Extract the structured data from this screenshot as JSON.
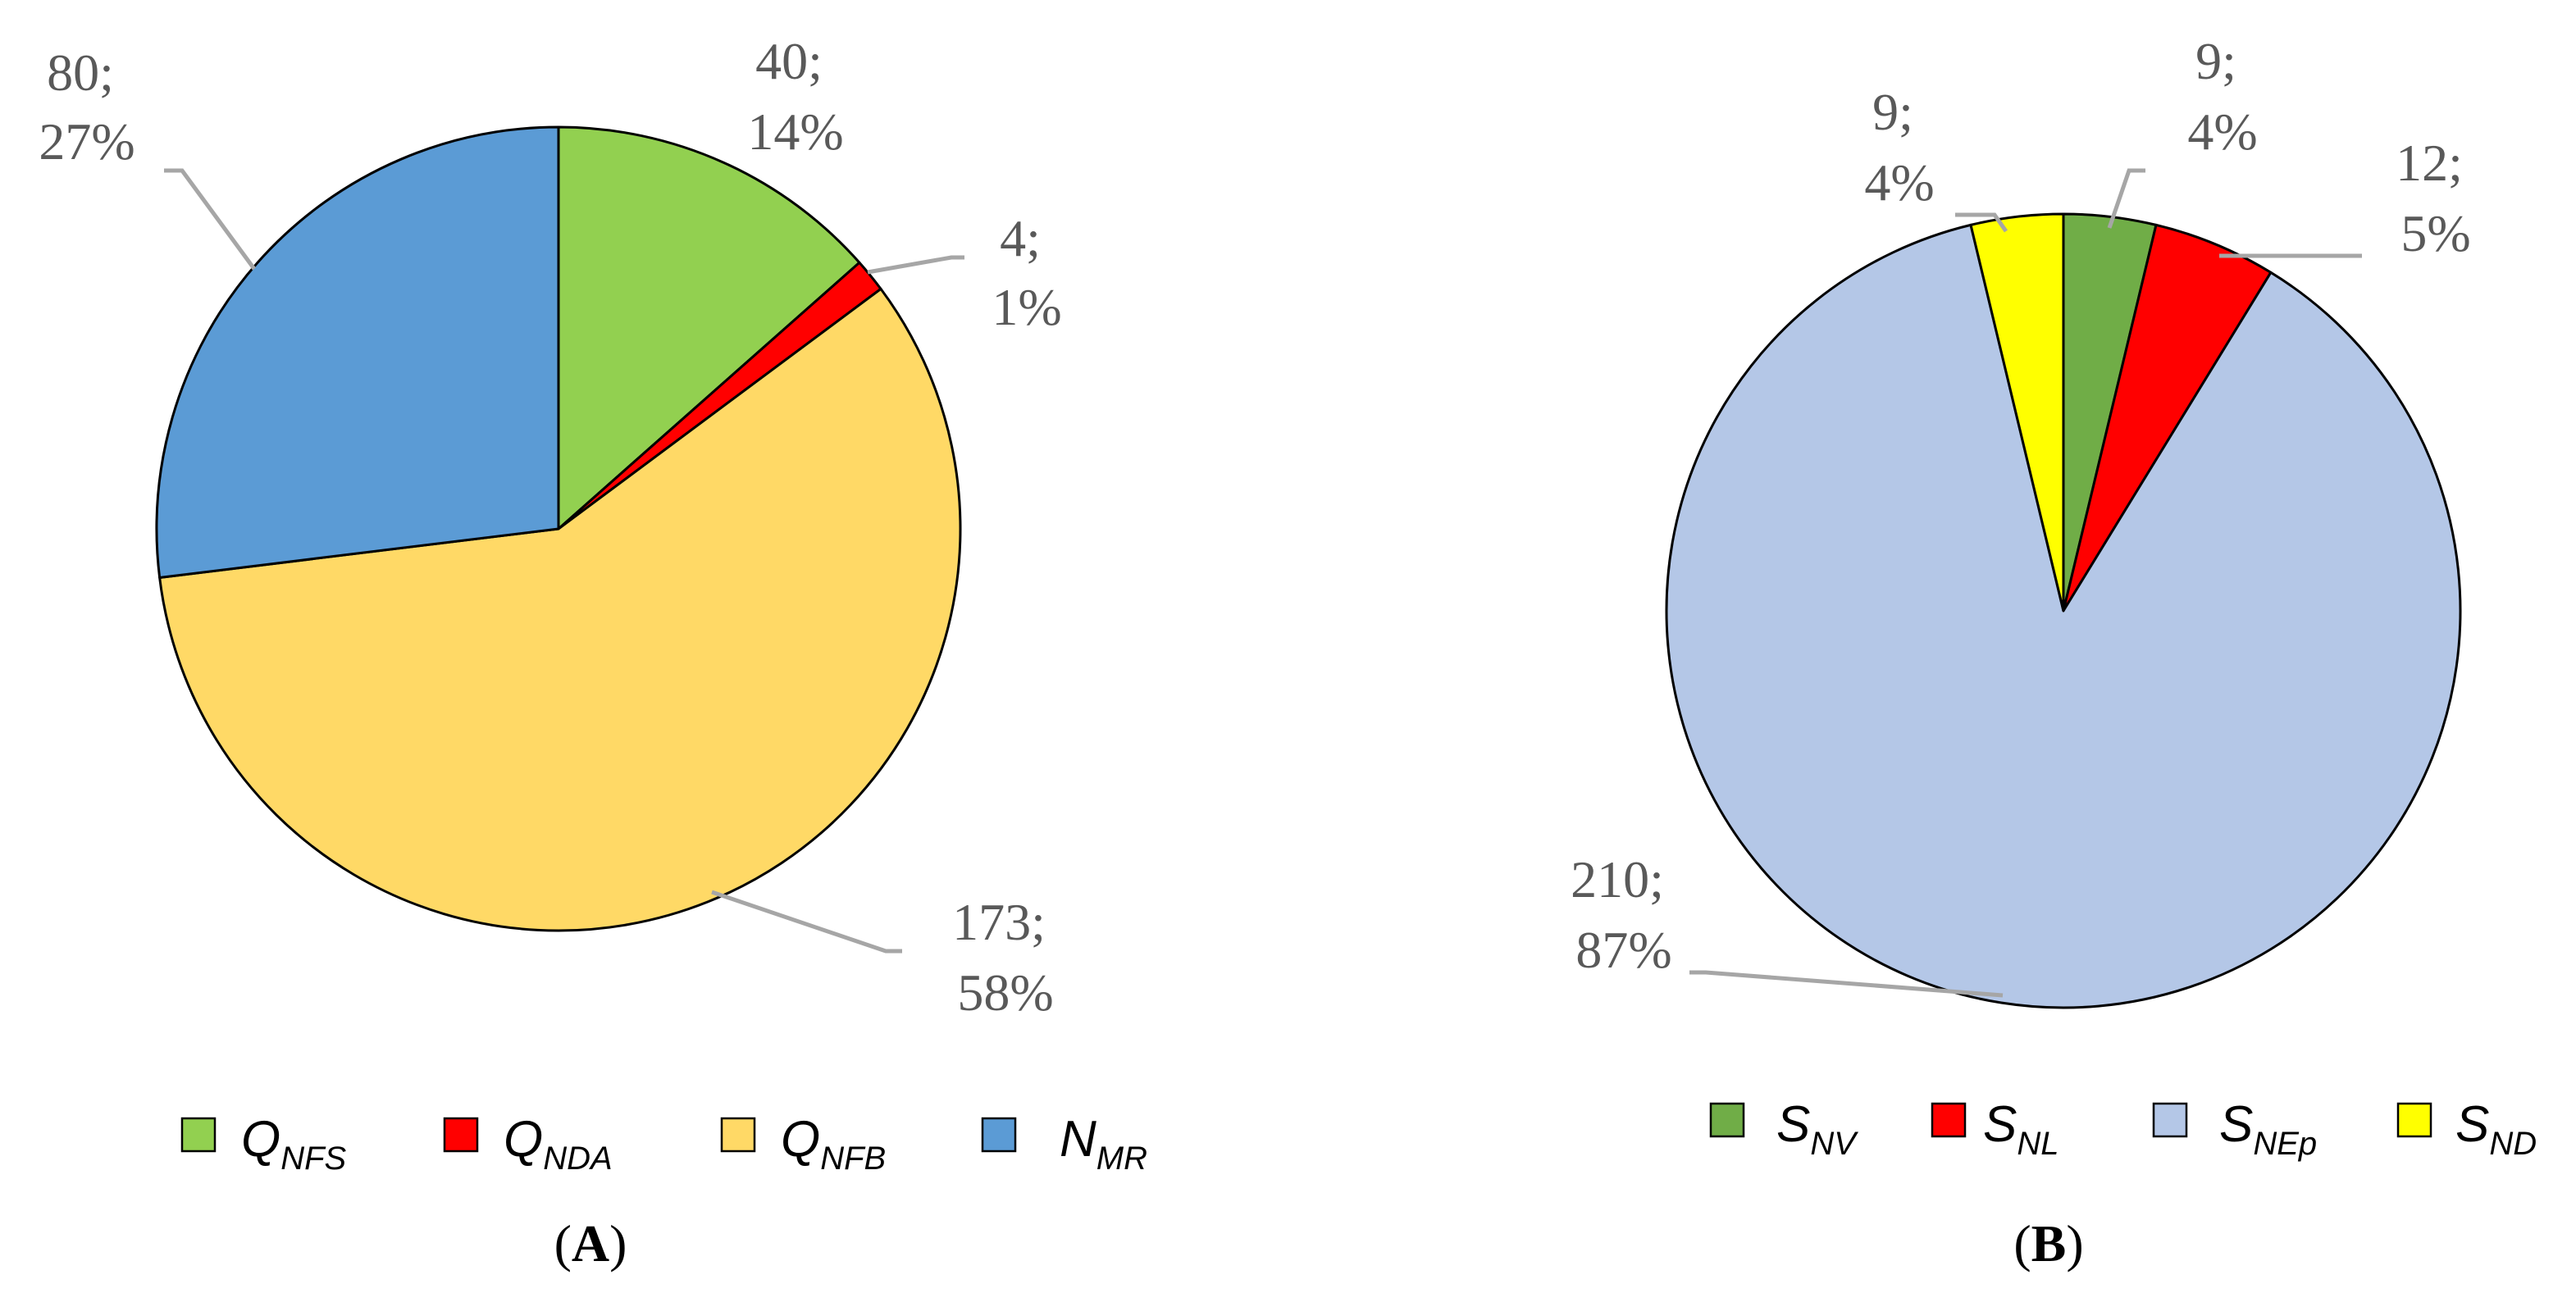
{
  "chart_data": [
    {
      "type": "pie",
      "panel_label": "A",
      "slices": [
        {
          "category": "Q_NFS",
          "value": 40,
          "percent": "14%",
          "color": "#92d050"
        },
        {
          "category": "Q_NDA",
          "value": 4,
          "percent": "1%",
          "color": "#ff0000"
        },
        {
          "category": "Q_NFB",
          "value": 173,
          "percent": "58%",
          "color": "#ffd966"
        },
        {
          "category": "N_MR",
          "value": 80,
          "percent": "27%",
          "color": "#5b9bd5"
        }
      ],
      "data_labels": [
        {
          "line1": "40;",
          "line2": "14%"
        },
        {
          "line1": "4;",
          "line2": "1%"
        },
        {
          "line1": "173;",
          "line2": "58%"
        },
        {
          "line1": "80;",
          "line2": "27%"
        }
      ],
      "legend": [
        {
          "main": "Q",
          "sub": "NFS",
          "color": "#92d050"
        },
        {
          "main": "Q",
          "sub": "NDA",
          "color": "#ff0000"
        },
        {
          "main": "Q",
          "sub": "NFB",
          "color": "#ffd966"
        },
        {
          "main": "N",
          "sub": "MR",
          "color": "#5b9bd5"
        }
      ],
      "legend_position": "bottom"
    },
    {
      "type": "pie",
      "panel_label": "B",
      "slices": [
        {
          "category": "S_NV",
          "value": 9,
          "percent": "4%",
          "color": "#70ad47"
        },
        {
          "category": "S_NL",
          "value": 12,
          "percent": "5%",
          "color": "#ff0000"
        },
        {
          "category": "S_NEp",
          "value": 210,
          "percent": "87%",
          "color": "#b4c7e7"
        },
        {
          "category": "S_ND",
          "value": 9,
          "percent": "4%",
          "color": "#ffff00"
        }
      ],
      "data_labels": [
        {
          "line1": "9;",
          "line2": "4%"
        },
        {
          "line1": "12;",
          "line2": "5%"
        },
        {
          "line1": "210;",
          "line2": "87%"
        },
        {
          "line1": "9;",
          "line2": "4%"
        }
      ],
      "legend": [
        {
          "main": "S",
          "sub": "NV",
          "color": "#70ad47"
        },
        {
          "main": "S",
          "sub": "NL",
          "color": "#ff0000"
        },
        {
          "main": "S",
          "sub": "NEp",
          "color": "#b4c7e7"
        },
        {
          "main": "S",
          "sub": "ND",
          "color": "#ffff00"
        }
      ],
      "legend_position": "bottom"
    }
  ]
}
